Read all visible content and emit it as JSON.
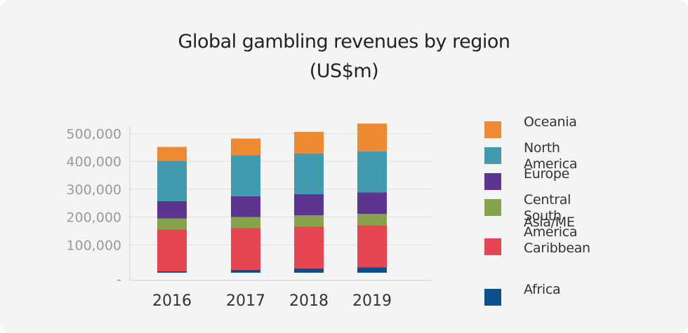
{
  "chart_data": {
    "type": "bar",
    "stacked": true,
    "title": "Global gambling revenues by region",
    "subtitle": "(US$m)",
    "categories": [
      "2016",
      "2017",
      "2018",
      "2019"
    ],
    "yticks": [
      "-",
      "100,000",
      "200,000",
      "300,000",
      "400,000",
      "500,000"
    ],
    "ylim": [
      0,
      525000
    ],
    "grid": true,
    "legend_position": "right",
    "series": [
      {
        "name": "Africa",
        "color": "#0d4f8b",
        "values": [
          5000,
          10000,
          15000,
          19000
        ]
      },
      {
        "name": "Asia/ME",
        "color": "#e64652",
        "values": [
          150000,
          151000,
          151000,
          152000
        ]
      },
      {
        "name": "Central\nSouth America\nCaribbean",
        "color": "#86a34b",
        "values": [
          40000,
          39000,
          40000,
          40000
        ]
      },
      {
        "name": "Europe",
        "color": "#5c3591",
        "values": [
          62000,
          75000,
          76000,
          78000
        ]
      },
      {
        "name": "North America",
        "color": "#419aae",
        "values": [
          145000,
          147000,
          147000,
          147000
        ]
      },
      {
        "name": "Oceania",
        "color": "#ee8a32",
        "values": [
          50000,
          60000,
          77000,
          100000
        ]
      }
    ]
  }
}
